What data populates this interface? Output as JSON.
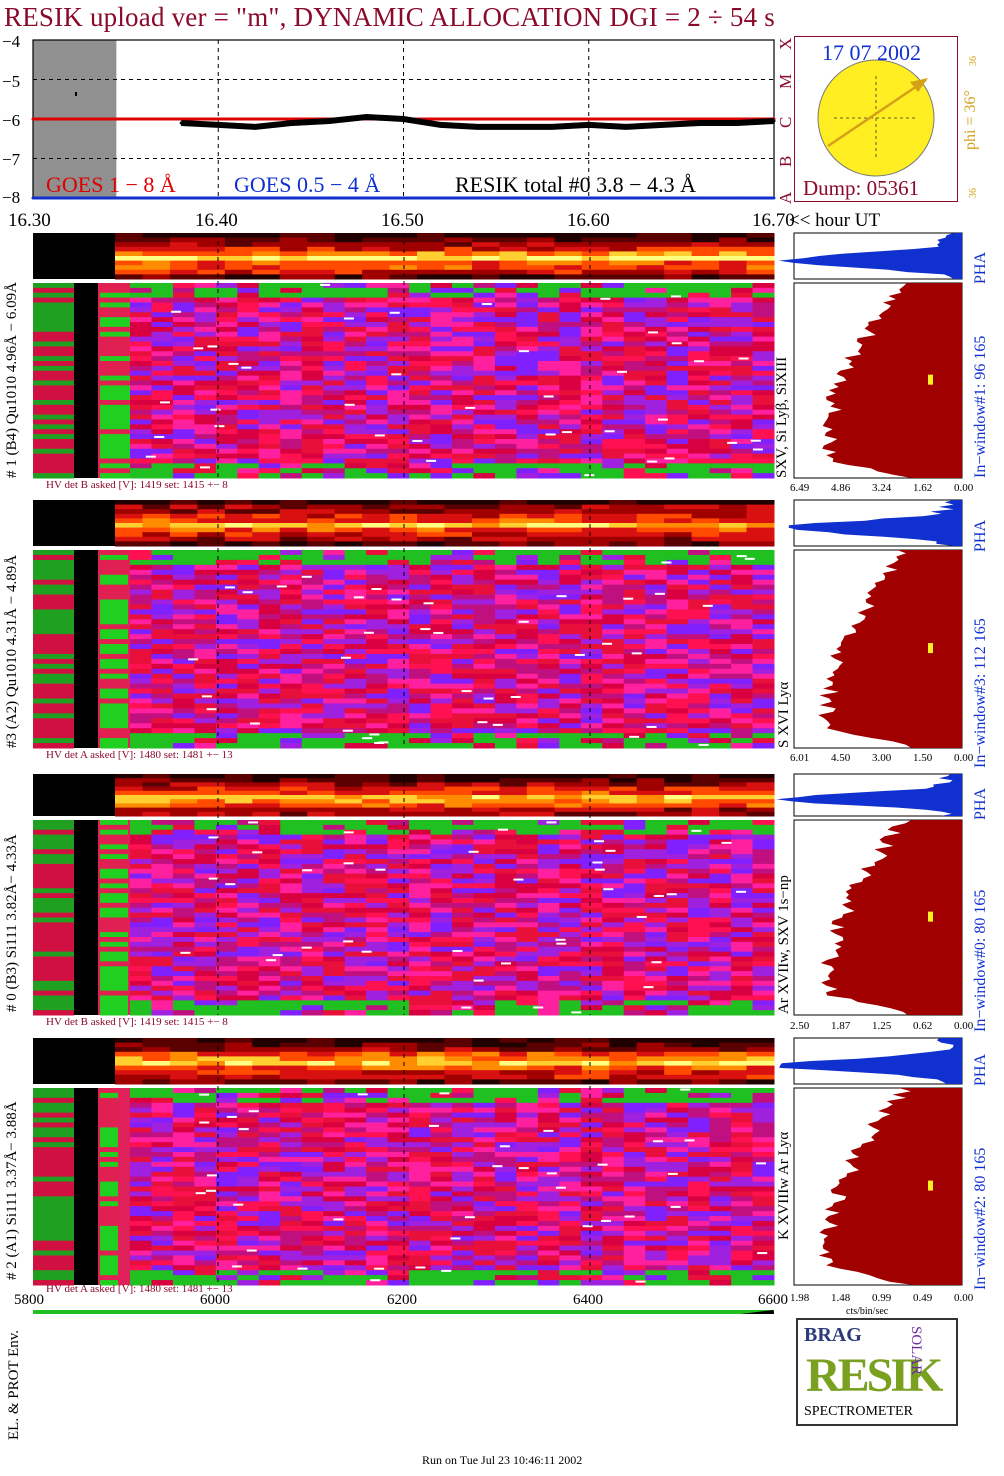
{
  "title": "RESIK upload ver = \"m\", DYNAMIC ALLOCATION  DGI =   2 ÷  54 s",
  "goes": {
    "y_ticks": [
      "−4",
      "−5",
      "−6",
      "−7",
      "−8"
    ],
    "x_ticks": [
      "16.30",
      "16.40",
      "16.50",
      "16.60",
      "16.70"
    ],
    "x_unit": "<< hour UT",
    "class_letters": [
      "X",
      "M",
      "C",
      "B",
      "A"
    ],
    "legend_1_8": "GOES 1 − 8 Å",
    "legend_05_4": "GOES 0.5 − 4 Å",
    "legend_resik": "RESIK total #0  3.8 − 4.3 Å",
    "colors": {
      "goes_long": "#e00000",
      "goes_short": "#1030d0",
      "resik": "#000000"
    }
  },
  "sun": {
    "date": "17 07 2002",
    "dump": "Dump: 05361",
    "phi_label": "phi = 36°",
    "small_top": "36",
    "small_bottom": "36",
    "colors": {
      "disk": "#ffee22",
      "arrow": "#d4a017",
      "text": "#1030d0",
      "dump": "#8b0a2a"
    }
  },
  "channels": [
    {
      "id": "ch1",
      "left_label": "# 1 (B4) Qu1010 4.96Å − 6.09Å",
      "line_label": "SXV, Si Lyβ, SiXIII",
      "window_label": "In−window#1:   96 165",
      "pha": "PHA",
      "hv": "HV det B asked [V]:  1419 set:   1415  +−    8",
      "pha_ticks": [
        "6.49",
        "4.86",
        "3.24",
        "1.62",
        "0.00"
      ]
    },
    {
      "id": "ch3",
      "left_label": "#3 (A2) Qu1010  4.31Å − 4.89Å",
      "line_label": "S XVI Lyα",
      "window_label": "In−window#3:  112 165",
      "pha": "PHA",
      "hv": "HV det A asked [V]:  1480 set:   1481  +−    13",
      "pha_ticks": [
        "6.01",
        "4.50",
        "3.00",
        "1.50",
        "0.00"
      ]
    },
    {
      "id": "ch0",
      "left_label": "# 0 (B3) Si111  3.82Å− 4.33Å",
      "line_label": "Ar XVIIw,  SXV 1s−np",
      "window_label": "In−window#0:   80 165",
      "pha": "PHA",
      "hv": "HV det B asked [V]:  1419 set:   1415  +−    8",
      "pha_ticks": [
        "2.50",
        "1.87",
        "1.25",
        "0.62",
        "0.00"
      ]
    },
    {
      "id": "ch2",
      "left_label": "# 2 (A1) Si111  3.37Å− 3.88Å",
      "line_label": "K XVIIIw  Ar Lyα",
      "window_label": "In−window#2:   80 165",
      "pha": "PHA",
      "hv": "HV det A asked [V]:  1480 set:   1481  +−    13",
      "pha_ticks": [
        "1.98",
        "1.48",
        "0.99",
        "0.49",
        "0.00"
      ]
    }
  ],
  "pha_xlabel": "cts/bin/sec",
  "env": {
    "label": "EL. & PROT Env.",
    "x_ticks": [
      "5800",
      "6000",
      "6200",
      "6400",
      "6600"
    ]
  },
  "logo": {
    "top_left": "BRAG",
    "right": "SOLAR",
    "main": "RESIK",
    "bottom": "SPECTROMETER"
  },
  "footer": "Run on Tue Jul 23 10:46:11 2002",
  "chart_data": {
    "type": "line",
    "title": "RESIK upload ver = \"m\", DYNAMIC ALLOCATION  DGI =   2 ÷  54 s",
    "xlabel": "<< hour UT",
    "ylabel": "",
    "xlim": [
      16.3,
      16.7
    ],
    "ylim": [
      -8,
      -4
    ],
    "x": [
      16.3,
      16.32,
      16.34,
      16.36,
      16.38,
      16.4,
      16.42,
      16.44,
      16.46,
      16.48,
      16.5,
      16.52,
      16.54,
      16.56,
      16.58,
      16.6,
      16.62,
      16.64,
      16.66,
      16.68,
      16.7
    ],
    "series": [
      {
        "name": "GOES 1 − 8 Å",
        "values": [
          -6.0,
          -6.0,
          -6.0,
          -6.0,
          -6.0,
          -6.0,
          -6.0,
          -6.0,
          -6.0,
          -6.0,
          -6.0,
          -6.0,
          -6.0,
          -6.0,
          -6.0,
          -6.0,
          -6.0,
          -6.0,
          -6.0,
          -6.0,
          -6.0
        ]
      },
      {
        "name": "GOES 0.5 − 4 Å",
        "values": [
          -8.0,
          -8.0,
          -8.0,
          -8.0,
          -8.0,
          -8.0,
          -8.0,
          -8.0,
          -8.0,
          -8.0,
          -8.0,
          -8.0,
          -8.0,
          -8.0,
          -8.0,
          -8.0,
          -8.0,
          -8.0,
          -8.0,
          -8.0,
          -8.0
        ]
      },
      {
        "name": "RESIK total #0  3.8 − 4.3 Å",
        "values": [
          null,
          null,
          null,
          null,
          -6.1,
          -6.15,
          -6.2,
          -6.1,
          -6.05,
          -5.95,
          -6.0,
          -6.15,
          -6.2,
          -6.2,
          -6.2,
          -6.15,
          -6.2,
          -6.15,
          -6.1,
          -6.1,
          -6.05
        ]
      }
    ],
    "shaded_x": [
      16.3,
      16.345
    ],
    "grid": true
  }
}
